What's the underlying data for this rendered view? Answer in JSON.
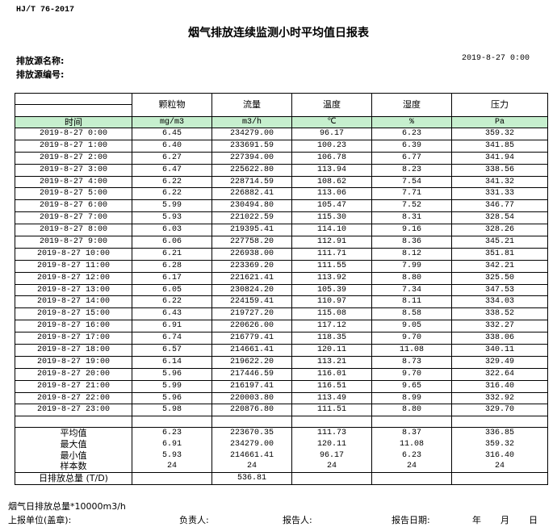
{
  "header": {
    "standard": "HJ/T  76-2017",
    "title": "烟气排放连续监测小时平均值日报表",
    "source_name_label": "排放源名称:",
    "source_id_label": "排放源编号:",
    "report_datetime": "2019-8-27 0:00"
  },
  "table": {
    "columns": [
      "颗粒物",
      "流量",
      "温度",
      "湿度",
      "压力"
    ],
    "time_label": "时间",
    "units": [
      "mg/m3",
      "m3/h",
      "℃",
      "%",
      "Pa"
    ],
    "rows": [
      [
        "2019-8-27 0:00",
        "6.45",
        "234279.00",
        "96.17",
        "6.23",
        "359.32"
      ],
      [
        "2019-8-27 1:00",
        "6.40",
        "233691.59",
        "100.23",
        "6.39",
        "341.85"
      ],
      [
        "2019-8-27 2:00",
        "6.27",
        "227394.00",
        "106.78",
        "6.77",
        "341.94"
      ],
      [
        "2019-8-27 3:00",
        "6.47",
        "225622.80",
        "113.94",
        "8.23",
        "338.56"
      ],
      [
        "2019-8-27 4:00",
        "6.22",
        "228714.59",
        "108.62",
        "7.54",
        "341.32"
      ],
      [
        "2019-8-27 5:00",
        "6.22",
        "226882.41",
        "113.06",
        "7.71",
        "331.33"
      ],
      [
        "2019-8-27 6:00",
        "5.99",
        "230494.80",
        "105.47",
        "7.52",
        "346.77"
      ],
      [
        "2019-8-27 7:00",
        "5.93",
        "221022.59",
        "115.30",
        "8.31",
        "328.54"
      ],
      [
        "2019-8-27 8:00",
        "6.03",
        "219395.41",
        "114.10",
        "9.16",
        "328.26"
      ],
      [
        "2019-8-27 9:00",
        "6.06",
        "227758.20",
        "112.91",
        "8.36",
        "345.21"
      ],
      [
        "2019-8-27 10:00",
        "6.21",
        "226938.00",
        "111.71",
        "8.12",
        "351.81"
      ],
      [
        "2019-8-27 11:00",
        "6.28",
        "223369.20",
        "111.55",
        "7.99",
        "342.21"
      ],
      [
        "2019-8-27 12:00",
        "6.17",
        "221621.41",
        "113.92",
        "8.80",
        "325.50"
      ],
      [
        "2019-8-27 13:00",
        "6.05",
        "230824.20",
        "105.39",
        "7.34",
        "347.53"
      ],
      [
        "2019-8-27 14:00",
        "6.22",
        "224159.41",
        "110.97",
        "8.11",
        "334.03"
      ],
      [
        "2019-8-27 15:00",
        "6.43",
        "219727.20",
        "115.08",
        "8.58",
        "338.52"
      ],
      [
        "2019-8-27 16:00",
        "6.91",
        "220626.00",
        "117.12",
        "9.05",
        "332.27"
      ],
      [
        "2019-8-27 17:00",
        "6.74",
        "216779.41",
        "118.35",
        "9.70",
        "338.06"
      ],
      [
        "2019-8-27 18:00",
        "6.57",
        "214661.41",
        "120.11",
        "11.08",
        "340.11"
      ],
      [
        "2019-8-27 19:00",
        "6.14",
        "219622.20",
        "113.21",
        "8.73",
        "329.49"
      ],
      [
        "2019-8-27 20:00",
        "5.96",
        "217446.59",
        "116.01",
        "9.70",
        "322.64"
      ],
      [
        "2019-8-27 21:00",
        "5.99",
        "216197.41",
        "116.51",
        "9.65",
        "316.40"
      ],
      [
        "2019-8-27 22:00",
        "5.96",
        "220003.80",
        "113.49",
        "8.99",
        "332.92"
      ],
      [
        "2019-8-27 23:00",
        "5.98",
        "220876.80",
        "111.51",
        "8.80",
        "329.70"
      ]
    ],
    "stats": [
      [
        "平均值",
        "6.23",
        "223670.35",
        "111.73",
        "8.37",
        "336.85"
      ],
      [
        "最大值",
        "6.91",
        "234279.00",
        "120.11",
        "11.08",
        "359.32"
      ],
      [
        "最小值",
        "5.93",
        "214661.41",
        "96.17",
        "6.23",
        "316.40"
      ],
      [
        "样本数",
        "24",
        "24",
        "24",
        "24",
        "24"
      ]
    ],
    "total_label": "日排放总量 (T/D)",
    "total_value": "536.81"
  },
  "footer": {
    "note": "烟气日排放总量*10000m3/h",
    "unit_label": "上报单位(盖章):",
    "responsible_label": "负责人:",
    "reporter_label": "报告人:",
    "report_date_label": "报告日期:",
    "year": "年",
    "month": "月",
    "day": "日"
  },
  "colors": {
    "unit_row_bg": "#c6efce"
  }
}
